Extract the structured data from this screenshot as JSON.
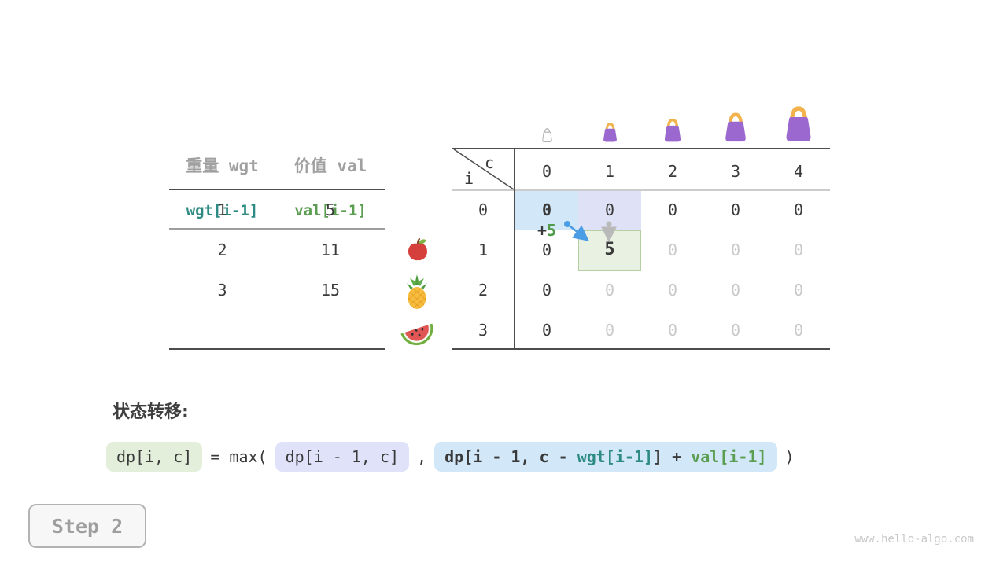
{
  "colors": {
    "dark_text": "#3a3a3a",
    "muted_text": "#c9c9c9",
    "gray_header": "#a1a1a1",
    "teal": "#2e8b83",
    "green": "#5b9e51",
    "highlight_blue": "#d2e7f7",
    "highlight_lavender": "#dfe1f6",
    "highlight_green_bg": "#e9f1e3",
    "highlight_green_border": "#b5cfa3",
    "arrow_blue": "#4a9ee5",
    "arrow_gray": "#b9b9b9",
    "bag_purple": "#9a68ce",
    "bag_handle": "#f2b24c"
  },
  "items_table": {
    "col1_header": "重量 wgt",
    "col2_header": "价值 val",
    "sub1": "wgt[i-1]",
    "sub2": "val[i-1]",
    "rows": [
      {
        "wgt": "1",
        "val": "5",
        "fruit": "apple"
      },
      {
        "wgt": "2",
        "val": "11",
        "fruit": "pineapple"
      },
      {
        "wgt": "3",
        "val": "15",
        "fruit": "watermelon"
      }
    ]
  },
  "dp_table": {
    "corner_col_label": "c",
    "corner_row_label": "i",
    "col_headers": [
      "0",
      "1",
      "2",
      "3",
      "4"
    ],
    "row_headers": [
      "0",
      "1",
      "2",
      "3"
    ],
    "cells": [
      [
        "0",
        "0",
        "0",
        "0",
        "0"
      ],
      [
        "0",
        "5",
        "0",
        "0",
        "0"
      ],
      [
        "0",
        "0",
        "0",
        "0",
        "0"
      ],
      [
        "0",
        "0",
        "0",
        "0",
        "0"
      ]
    ],
    "annotation_plus": "+",
    "annotation_value": "5",
    "bags": [
      {
        "capacity": "0",
        "variant": "empty"
      },
      {
        "capacity": "1",
        "variant": "purple"
      },
      {
        "capacity": "2",
        "variant": "purple"
      },
      {
        "capacity": "3",
        "variant": "purple"
      },
      {
        "capacity": "4",
        "variant": "purple"
      }
    ]
  },
  "formula": {
    "heading": "状态转移:",
    "lhs": "dp[i, c]",
    "eq": "= max(",
    "opt1": "dp[i - 1, c]",
    "comma": ",",
    "opt2_p1": "dp[i - 1, c - ",
    "opt2_wgt": "wgt[i-1]",
    "opt2_p3": "] + ",
    "opt2_val": "val[i-1]",
    "close": ")"
  },
  "step_button": {
    "label": "Step 2"
  },
  "watermark": "www.hello-algo.com"
}
